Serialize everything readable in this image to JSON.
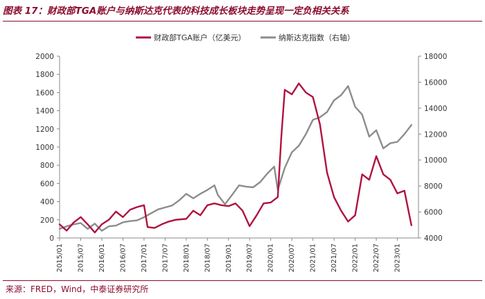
{
  "title": "图表 17：财政部TGA账户与纳斯达克代表的科技成长板块走势呈现一定负相关关系",
  "source": "来源：FRED，Wind，中泰证券研究所",
  "colors": {
    "tga": "#b0123f",
    "nasdaq": "#8c8c8c",
    "brand": "#8b0d2f"
  },
  "chart_data": {
    "type": "line",
    "legend_position": "top-center",
    "grid": false,
    "x_tick_labels": [
      "2015/01",
      "2015/07",
      "2016/01",
      "2016/07",
      "2017/01",
      "2017/07",
      "2018/01",
      "2018/07",
      "2019/01",
      "2019/07",
      "2020/01",
      "2020/07",
      "2021/01",
      "2021/07",
      "2022/01",
      "2022/07",
      "2023/01"
    ],
    "y_left": {
      "min": 0,
      "max": 2000,
      "ticks": [
        "0",
        "200",
        "400",
        "600",
        "800",
        "1000",
        "1200",
        "1400",
        "1600",
        "1800",
        "2000"
      ]
    },
    "y_right": {
      "min": 4000,
      "max": 18000,
      "ticks": [
        "4000",
        "6000",
        "8000",
        "10000",
        "12000",
        "14000",
        "16000",
        "18000"
      ]
    },
    "series": [
      {
        "name": "财政部TGA账户（亿美元）",
        "axis": "left",
        "x": [
          "2015/01",
          "2015/03",
          "2015/05",
          "2015/07",
          "2015/09",
          "2015/11",
          "2016/01",
          "2016/03",
          "2016/05",
          "2016/07",
          "2016/09",
          "2016/11",
          "2017/01",
          "2017/02",
          "2017/04",
          "2017/06",
          "2017/08",
          "2017/10",
          "2018/01",
          "2018/03",
          "2018/05",
          "2018/07",
          "2018/09",
          "2018/11",
          "2019/01",
          "2019/03",
          "2019/05",
          "2019/07",
          "2019/09",
          "2019/11",
          "2020/01",
          "2020/03",
          "2020/04",
          "2020/05",
          "2020/07",
          "2020/09",
          "2020/11",
          "2021/01",
          "2021/03",
          "2021/05",
          "2021/07",
          "2021/09",
          "2021/11",
          "2022/01",
          "2022/03",
          "2022/05",
          "2022/07",
          "2022/09",
          "2022/11",
          "2023/01",
          "2023/03",
          "2023/05"
        ],
        "values": [
          150,
          80,
          170,
          230,
          150,
          60,
          150,
          200,
          290,
          230,
          310,
          340,
          360,
          120,
          110,
          150,
          180,
          200,
          210,
          300,
          250,
          360,
          380,
          360,
          350,
          380,
          300,
          130,
          250,
          380,
          390,
          450,
          1100,
          1630,
          1580,
          1700,
          1600,
          1550,
          1250,
          720,
          450,
          300,
          180,
          250,
          700,
          640,
          900,
          700,
          640,
          490,
          520,
          140
        ]
      },
      {
        "name": "纳斯达克指数（右轴）",
        "axis": "right",
        "x": [
          "2015/01",
          "2015/03",
          "2015/05",
          "2015/07",
          "2015/09",
          "2015/11",
          "2016/01",
          "2016/03",
          "2016/05",
          "2016/07",
          "2016/09",
          "2016/11",
          "2017/01",
          "2017/03",
          "2017/05",
          "2017/07",
          "2017/09",
          "2017/11",
          "2018/01",
          "2018/03",
          "2018/05",
          "2018/07",
          "2018/09",
          "2018/10",
          "2018/12",
          "2019/02",
          "2019/04",
          "2019/06",
          "2019/08",
          "2019/10",
          "2019/12",
          "2020/02",
          "2020/03",
          "2020/05",
          "2020/07",
          "2020/09",
          "2020/11",
          "2021/01",
          "2021/03",
          "2021/05",
          "2021/07",
          "2021/09",
          "2021/11",
          "2022/01",
          "2022/03",
          "2022/05",
          "2022/07",
          "2022/09",
          "2022/11",
          "2023/01",
          "2023/03",
          "2023/05"
        ],
        "values": [
          4700,
          4900,
          5050,
          5150,
          4700,
          5100,
          4550,
          4900,
          4950,
          5200,
          5300,
          5350,
          5600,
          5900,
          6200,
          6350,
          6500,
          6900,
          7400,
          7050,
          7400,
          7700,
          8050,
          7300,
          6600,
          7300,
          8050,
          7950,
          7900,
          8300,
          8950,
          9500,
          7700,
          9400,
          10600,
          11100,
          12000,
          13100,
          13300,
          13700,
          14600,
          15000,
          15700,
          14100,
          13500,
          11800,
          12300,
          10900,
          11300,
          11400,
          12000,
          12700
        ]
      }
    ]
  }
}
